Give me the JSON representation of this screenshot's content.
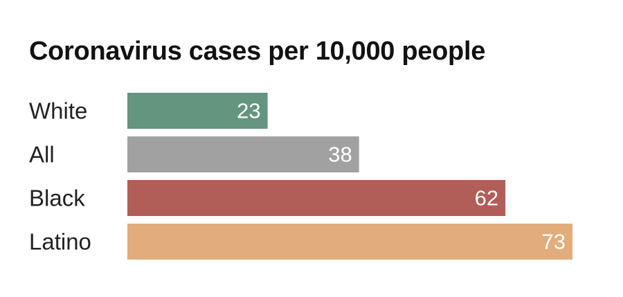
{
  "chart_data": {
    "type": "bar",
    "orientation": "horizontal",
    "title": "Coronavirus cases per 10,000 people",
    "xlabel": "",
    "ylabel": "",
    "categories": [
      "White",
      "All",
      "Black",
      "Latino"
    ],
    "values": [
      23,
      38,
      62,
      73
    ],
    "colors": [
      "#64957f",
      "#a1a1a1",
      "#b15d58",
      "#e3ac7c"
    ],
    "xlim": [
      0,
      73
    ],
    "grid": false,
    "legend": "none",
    "data_labels": "inside-end"
  }
}
